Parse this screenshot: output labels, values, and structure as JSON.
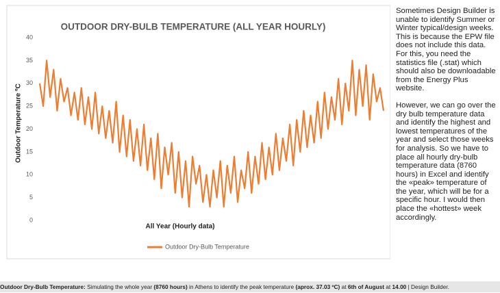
{
  "chart_data": {
    "type": "line",
    "title": "OUTDOOR DRY-BULB TEMPERATURE (ALL YEAR HOURLY)",
    "x_label": "All Year (Hourly data)",
    "y_label": "Outdoor Temperature ºC",
    "ylim": [
      0,
      40
    ],
    "yticks": [
      0,
      5,
      10,
      15,
      20,
      25,
      30,
      35,
      40
    ],
    "grid": false,
    "legend": "bottom",
    "series": [
      {
        "name": "Outdoor Dry-Bulb Temperature",
        "color": "#ed7d31",
        "values": [
          30,
          25,
          35,
          27,
          33,
          24,
          31,
          26,
          29,
          23,
          28,
          22,
          29,
          21,
          27,
          20,
          28,
          19,
          25,
          18,
          24,
          17,
          26,
          15,
          23,
          14,
          22,
          13,
          20,
          12,
          21,
          11,
          18,
          9,
          19,
          7,
          16,
          10,
          17,
          6,
          15,
          5,
          13,
          3,
          14,
          8,
          12,
          4,
          10,
          3,
          11,
          5,
          13,
          3,
          12,
          6,
          14,
          4,
          11,
          7,
          15,
          6,
          14,
          8,
          17,
          9,
          16,
          10,
          19,
          11,
          18,
          13,
          21,
          12,
          22,
          15,
          24,
          16,
          23,
          17,
          26,
          18,
          28,
          20,
          27,
          22,
          31,
          21,
          30,
          24,
          35,
          23,
          33,
          25,
          34,
          22,
          32,
          26,
          29,
          24
        ]
      }
    ]
  },
  "side_text": [
    "Sometimes Design Builder is unable to identify Summer or Winter typical/design weeks. This is because the EPW file does not include this data. For this, you need the statistics file (.stat) which should also be downloadable from the Energy Plus website.",
    "However, we can go over the dry bulb temperature data and identify the highest and lowest temperatures of the year and select those weeks for analysis. So we have to place all hourly dry-bulb temperature data (8760 hours) in Excel and identify the «peak» temperature of the year, which will be for a specific hour. I would then place the «hottest» week accordingly."
  ],
  "caption": [
    {
      "text": "Outdoor Dry-Bulb Temperature:",
      "bold": true
    },
    {
      "text": " Simulating the whole year ",
      "bold": false
    },
    {
      "text": "(8760 hours)",
      "bold": true
    },
    {
      "text": " in Athens to identify the peak temperature ",
      "bold": false
    },
    {
      "text": "(aprox. 37.03 ºC)",
      "bold": true
    },
    {
      "text": " at ",
      "bold": false
    },
    {
      "text": "6th of August",
      "bold": true
    },
    {
      "text": " at ",
      "bold": false
    },
    {
      "text": "14.00",
      "bold": true
    },
    {
      "text": " | Design Builder.",
      "bold": false
    }
  ]
}
